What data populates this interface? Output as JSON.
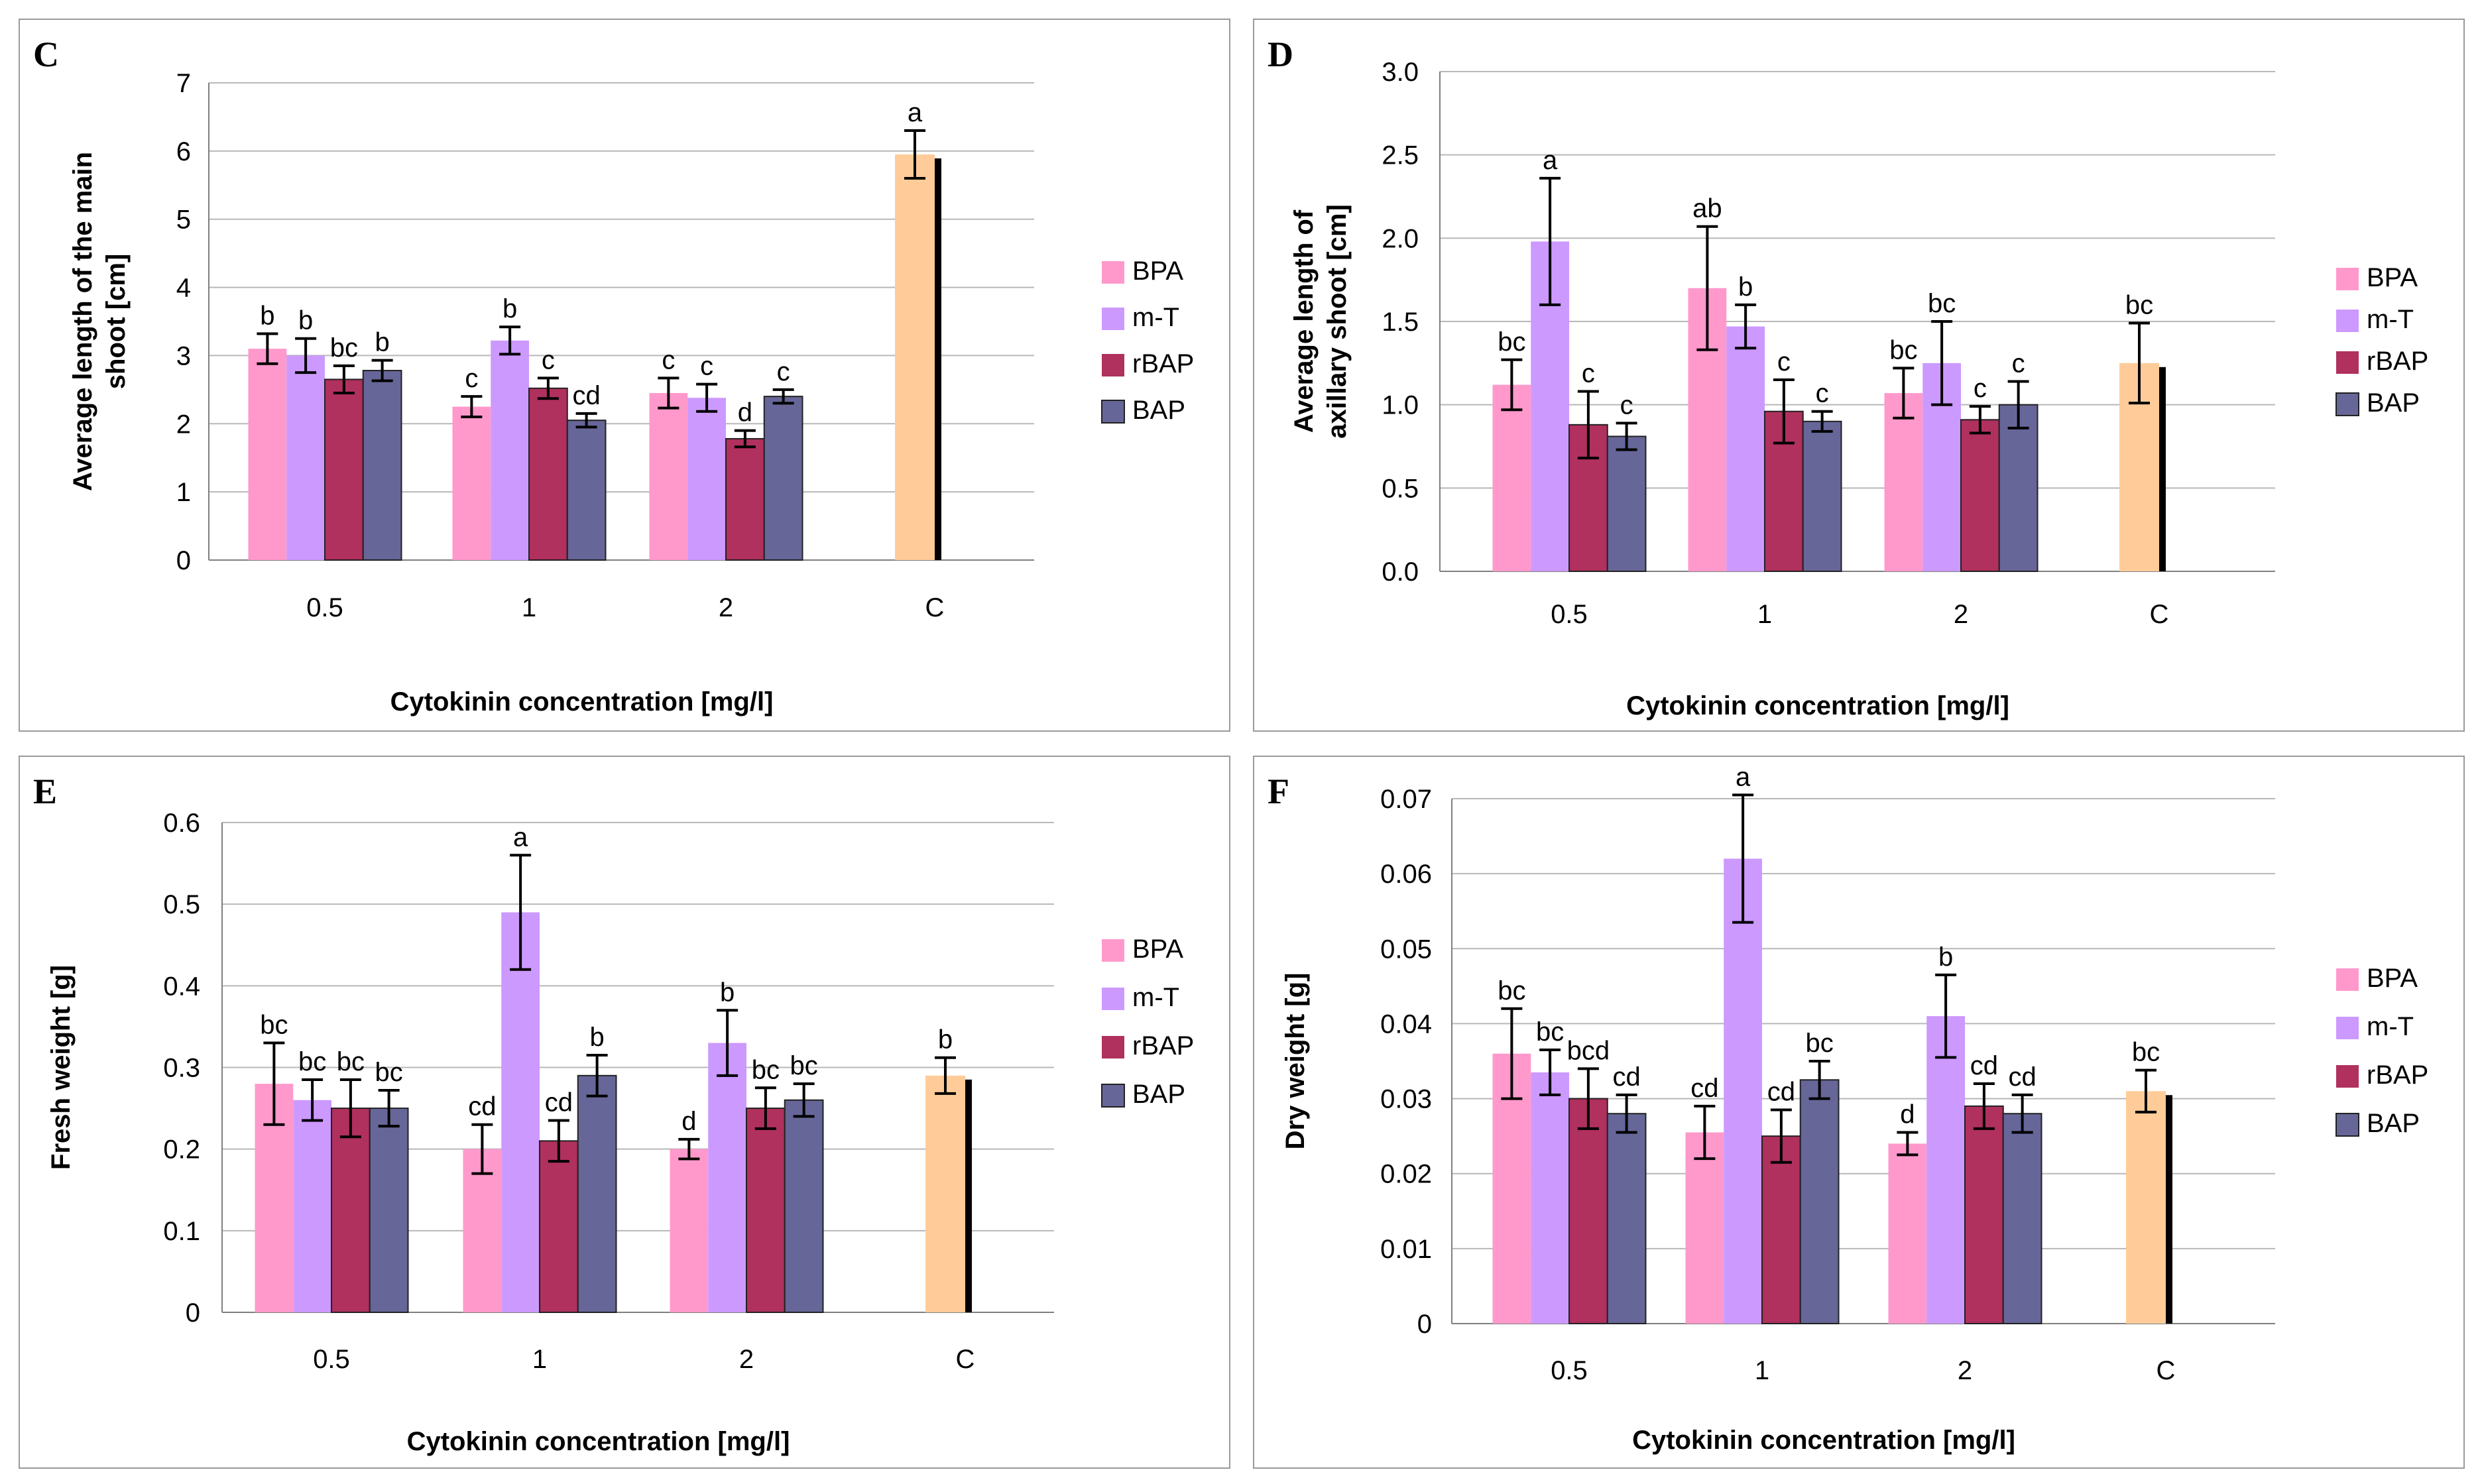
{
  "colors": {
    "BPA": "#ff99cc",
    "m-T": "#cc99ff",
    "rBAP": "#b0305e",
    "BAP": "#666699",
    "C": "#ffcc99",
    "grid": "#b8b8b8",
    "shadow": "#000000"
  },
  "chart_data": [
    {
      "type": "bar",
      "panel": "C",
      "xlabel": "Cytokinin concentration [mg/l]",
      "ylabel": [
        "Average length of the main",
        "shoot [cm]"
      ],
      "ylim": [
        0,
        7
      ],
      "yticks": [
        0,
        1,
        2,
        3,
        4,
        5,
        6,
        7
      ],
      "ytick_labels": [
        "0",
        "1",
        "2",
        "3",
        "4",
        "5",
        "6",
        "7"
      ],
      "categories": [
        "0.5",
        "1",
        "2",
        "C"
      ],
      "legend": [
        "BPA",
        "m-T",
        "rBAP",
        "BAP"
      ],
      "groups": [
        {
          "bars": [
            {
              "s": "BPA",
              "v": 3.1,
              "e": 0.22,
              "l": "b"
            },
            {
              "s": "m-T",
              "v": 3.0,
              "e": 0.25,
              "l": "b"
            },
            {
              "s": "rBAP",
              "v": 2.65,
              "e": 0.2,
              "l": "bc"
            },
            {
              "s": "BAP",
              "v": 2.78,
              "e": 0.15,
              "l": "b"
            }
          ]
        },
        {
          "bars": [
            {
              "s": "BPA",
              "v": 2.25,
              "e": 0.15,
              "l": "c"
            },
            {
              "s": "m-T",
              "v": 3.22,
              "e": 0.2,
              "l": "b"
            },
            {
              "s": "rBAP",
              "v": 2.52,
              "e": 0.15,
              "l": "c"
            },
            {
              "s": "BAP",
              "v": 2.05,
              "e": 0.1,
              "l": "cd"
            }
          ]
        },
        {
          "bars": [
            {
              "s": "BPA",
              "v": 2.45,
              "e": 0.22,
              "l": "c"
            },
            {
              "s": "m-T",
              "v": 2.38,
              "e": 0.2,
              "l": "c"
            },
            {
              "s": "rBAP",
              "v": 1.78,
              "e": 0.12,
              "l": "d"
            },
            {
              "s": "BAP",
              "v": 2.4,
              "e": 0.1,
              "l": "c"
            }
          ]
        },
        {
          "bars": [
            {
              "s": "C",
              "v": 5.95,
              "e": 0.35,
              "l": "a"
            }
          ]
        }
      ]
    },
    {
      "type": "bar",
      "panel": "D",
      "xlabel": "Cytokinin concentration [mg/l]",
      "ylabel": [
        "Average length of",
        "axillary shoot [cm]"
      ],
      "ylim": [
        0,
        3
      ],
      "yticks": [
        0,
        0.5,
        1,
        1.5,
        2,
        2.5,
        3
      ],
      "ytick_labels": [
        "0.0",
        "0.5",
        "1.0",
        "1.5",
        "2.0",
        "2.5",
        "3.0"
      ],
      "categories": [
        "0.5",
        "1",
        "2",
        "C"
      ],
      "legend": [
        "BPA",
        "m-T",
        "rBAP",
        "BAP"
      ],
      "groups": [
        {
          "bars": [
            {
              "s": "BPA",
              "v": 1.12,
              "e": 0.15,
              "l": "bc"
            },
            {
              "s": "m-T",
              "v": 1.98,
              "e": 0.38,
              "l": "a"
            },
            {
              "s": "rBAP",
              "v": 0.88,
              "e": 0.2,
              "l": "c"
            },
            {
              "s": "BAP",
              "v": 0.81,
              "e": 0.08,
              "l": "c"
            }
          ]
        },
        {
          "bars": [
            {
              "s": "BPA",
              "v": 1.7,
              "e": 0.37,
              "l": "ab"
            },
            {
              "s": "m-T",
              "v": 1.47,
              "e": 0.13,
              "l": "b"
            },
            {
              "s": "rBAP",
              "v": 0.96,
              "e": 0.19,
              "l": "c"
            },
            {
              "s": "BAP",
              "v": 0.9,
              "e": 0.06,
              "l": "c"
            }
          ]
        },
        {
          "bars": [
            {
              "s": "BPA",
              "v": 1.07,
              "e": 0.15,
              "l": "bc"
            },
            {
              "s": "m-T",
              "v": 1.25,
              "e": 0.25,
              "l": "bc"
            },
            {
              "s": "rBAP",
              "v": 0.91,
              "e": 0.08,
              "l": "c"
            },
            {
              "s": "BAP",
              "v": 1.0,
              "e": 0.14,
              "l": "c"
            }
          ]
        },
        {
          "bars": [
            {
              "s": "C",
              "v": 1.25,
              "e": 0.24,
              "l": "bc"
            }
          ]
        }
      ]
    },
    {
      "type": "bar",
      "panel": "E",
      "xlabel": "Cytokinin concentration [mg/l]",
      "ylabel": [
        "Fresh weight [g]"
      ],
      "ylim": [
        0,
        0.6
      ],
      "yticks": [
        0,
        0.1,
        0.2,
        0.3,
        0.4,
        0.5,
        0.6
      ],
      "ytick_labels": [
        "0",
        "0.1",
        "0.2",
        "0.3",
        "0.4",
        "0.5",
        "0.6"
      ],
      "categories": [
        "0.5",
        "1",
        "2",
        "C"
      ],
      "legend": [
        "BPA",
        "m-T",
        "rBAP",
        "BAP"
      ],
      "groups": [
        {
          "bars": [
            {
              "s": "BPA",
              "v": 0.28,
              "e": 0.05,
              "l": "bc"
            },
            {
              "s": "m-T",
              "v": 0.26,
              "e": 0.025,
              "l": "bc"
            },
            {
              "s": "rBAP",
              "v": 0.25,
              "e": 0.035,
              "l": "bc"
            },
            {
              "s": "BAP",
              "v": 0.25,
              "e": 0.022,
              "l": "bc"
            }
          ]
        },
        {
          "bars": [
            {
              "s": "BPA",
              "v": 0.2,
              "e": 0.03,
              "l": "cd"
            },
            {
              "s": "m-T",
              "v": 0.49,
              "e": 0.07,
              "l": "a"
            },
            {
              "s": "rBAP",
              "v": 0.21,
              "e": 0.025,
              "l": "cd"
            },
            {
              "s": "BAP",
              "v": 0.29,
              "e": 0.025,
              "l": "b"
            }
          ]
        },
        {
          "bars": [
            {
              "s": "BPA",
              "v": 0.2,
              "e": 0.012,
              "l": "d"
            },
            {
              "s": "m-T",
              "v": 0.33,
              "e": 0.04,
              "l": "b"
            },
            {
              "s": "rBAP",
              "v": 0.25,
              "e": 0.025,
              "l": "bc"
            },
            {
              "s": "BAP",
              "v": 0.26,
              "e": 0.02,
              "l": "bc"
            }
          ]
        },
        {
          "bars": [
            {
              "s": "C",
              "v": 0.29,
              "e": 0.022,
              "l": "b"
            }
          ]
        }
      ]
    },
    {
      "type": "bar",
      "panel": "F",
      "xlabel": "Cytokinin concentration [mg/l]",
      "ylabel": [
        "Dry weight [g]"
      ],
      "ylim": [
        0,
        0.07
      ],
      "yticks": [
        0,
        0.01,
        0.02,
        0.03,
        0.04,
        0.05,
        0.06,
        0.07
      ],
      "ytick_labels": [
        "0",
        "0.01",
        "0.02",
        "0.03",
        "0.04",
        "0.05",
        "0.06",
        "0.07"
      ],
      "categories": [
        "0.5",
        "1",
        "2",
        "C"
      ],
      "legend": [
        "BPA",
        "m-T",
        "rBAP",
        "BAP"
      ],
      "groups": [
        {
          "bars": [
            {
              "s": "BPA",
              "v": 0.036,
              "e": 0.006,
              "l": "bc"
            },
            {
              "s": "m-T",
              "v": 0.0335,
              "e": 0.003,
              "l": "bc"
            },
            {
              "s": "rBAP",
              "v": 0.03,
              "e": 0.004,
              "l": "bcd"
            },
            {
              "s": "BAP",
              "v": 0.028,
              "e": 0.0025,
              "l": "cd"
            }
          ]
        },
        {
          "bars": [
            {
              "s": "BPA",
              "v": 0.0255,
              "e": 0.0035,
              "l": "cd"
            },
            {
              "s": "m-T",
              "v": 0.062,
              "e": 0.0085,
              "l": "a"
            },
            {
              "s": "rBAP",
              "v": 0.025,
              "e": 0.0035,
              "l": "cd"
            },
            {
              "s": "BAP",
              "v": 0.0325,
              "e": 0.0025,
              "l": "bc"
            }
          ]
        },
        {
          "bars": [
            {
              "s": "BPA",
              "v": 0.024,
              "e": 0.0015,
              "l": "d"
            },
            {
              "s": "m-T",
              "v": 0.041,
              "e": 0.0055,
              "l": "b"
            },
            {
              "s": "rBAP",
              "v": 0.029,
              "e": 0.003,
              "l": "cd"
            },
            {
              "s": "BAP",
              "v": 0.028,
              "e": 0.0025,
              "l": "cd"
            }
          ]
        },
        {
          "bars": [
            {
              "s": "C",
              "v": 0.031,
              "e": 0.0028,
              "l": "bc"
            }
          ]
        }
      ]
    }
  ]
}
